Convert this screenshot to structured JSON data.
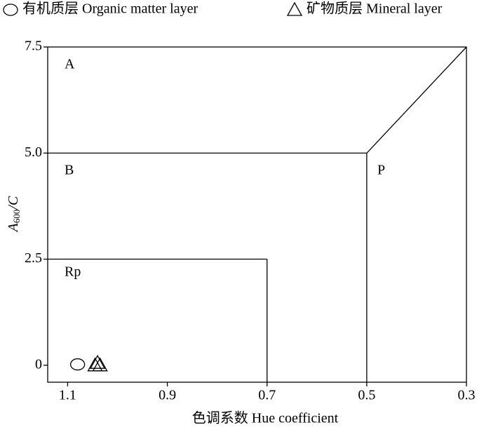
{
  "chart_data": {
    "type": "scatter",
    "x_label": "色调系数 Hue coefficient",
    "y_label": [
      "A",
      "600",
      "/C"
    ],
    "xlim": [
      1.14,
      0.3
    ],
    "ylim": [
      -0.4,
      7.5
    ],
    "xticks": [
      1.1,
      0.9,
      0.7,
      0.5,
      0.3
    ],
    "yticks": [
      0,
      2.5,
      {
        "value": 5,
        "label": "5.0"
      },
      7.5
    ],
    "series": [
      {
        "name": "有机质层 Organic matter layer",
        "marker": "circle",
        "color": "#000000",
        "x": [
          1.08
        ],
        "y": [
          0.02
        ]
      },
      {
        "name": "矿物质层 Mineral layer",
        "marker": "triangle",
        "color": "#000000",
        "x": [
          1.04,
          1.045,
          1.035
        ],
        "y": [
          0.06,
          0.0,
          0.0
        ]
      }
    ],
    "boundaries": [
      {
        "x": [
          0.5,
          0.3
        ],
        "y": [
          5,
          7.5
        ]
      },
      {
        "x": [
          0.7
        ],
        "y": [
          2.5
        ]
      }
    ],
    "annotations": [
      "A",
      "B",
      "P",
      "Rp"
    ]
  }
}
